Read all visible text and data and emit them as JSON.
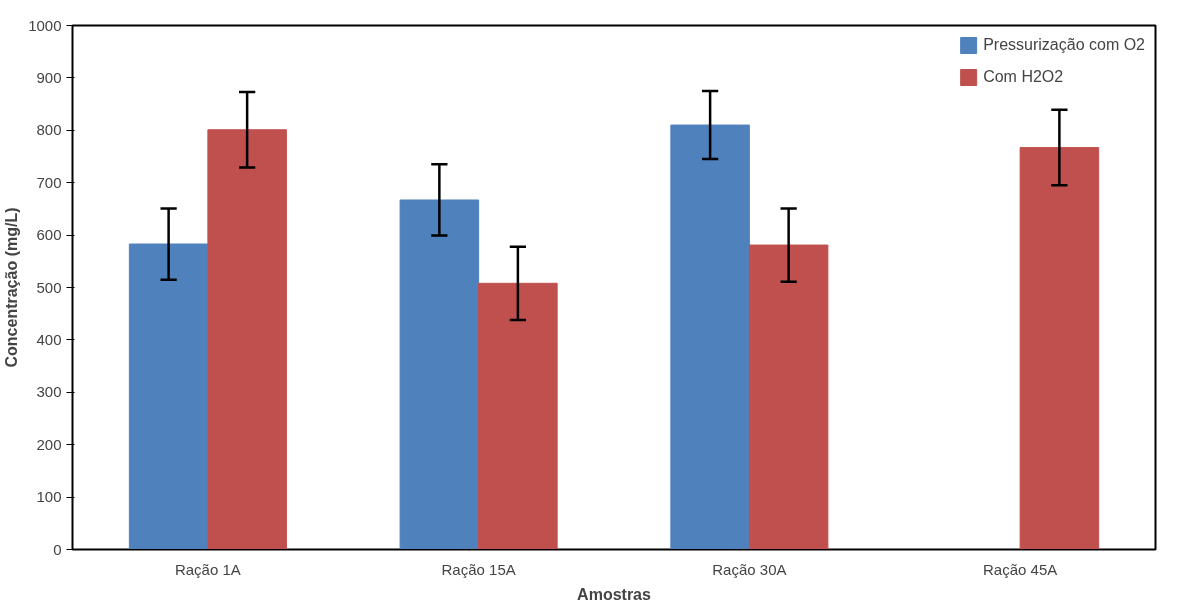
{
  "chart_data": {
    "type": "bar",
    "xlabel": "Amostras",
    "ylabel": "Concentração (mg/L)",
    "categories": [
      "Ração 1A",
      "Ração 15A",
      "Ração 30A",
      "Ração 45A"
    ],
    "series": [
      {
        "name": "Pressurização com O2",
        "color": "#4f81bd",
        "values": [
          583,
          667,
          810,
          null
        ],
        "errors": [
          68,
          68,
          65,
          null
        ]
      },
      {
        "name": "Com H2O2",
        "color": "#c0504d",
        "values": [
          801,
          508,
          581,
          767
        ],
        "errors": [
          72,
          70,
          70,
          72
        ]
      }
    ],
    "ylim": [
      0,
      1000
    ],
    "yticks": [
      0,
      100,
      200,
      300,
      400,
      500,
      600,
      700,
      800,
      900,
      1000
    ],
    "grid": false,
    "legend": "top right"
  }
}
